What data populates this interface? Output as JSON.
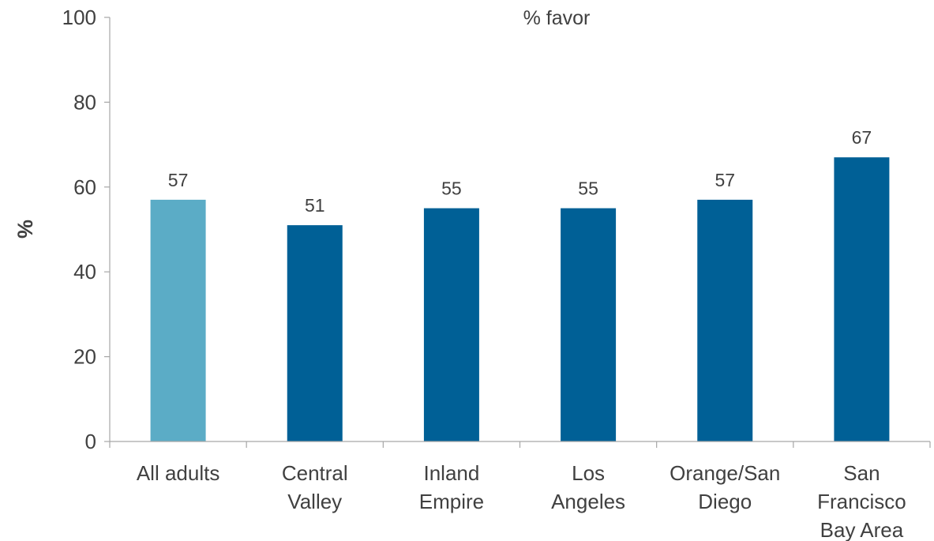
{
  "chart_data": {
    "type": "bar",
    "title": "% favor",
    "xlabel": "",
    "ylabel": "%",
    "ylim": [
      0,
      100
    ],
    "yticks": [
      "0",
      "20",
      "40",
      "60",
      "80",
      "100"
    ],
    "categories": [
      [
        "All adults"
      ],
      [
        "Central",
        "Valley"
      ],
      [
        "Inland",
        "Empire"
      ],
      [
        "Los",
        "Angeles"
      ],
      [
        "Orange/San",
        "Diego"
      ],
      [
        "San",
        "Francisco",
        "Bay Area"
      ]
    ],
    "values": [
      57,
      51,
      55,
      55,
      57,
      67
    ],
    "bar_colors": [
      "#5BACC6",
      "#006096",
      "#006096",
      "#006096",
      "#006096",
      "#006096"
    ],
    "grid": false,
    "legend": "none"
  },
  "colors": {
    "axis": "#A6A6A6",
    "text": "#404040"
  }
}
